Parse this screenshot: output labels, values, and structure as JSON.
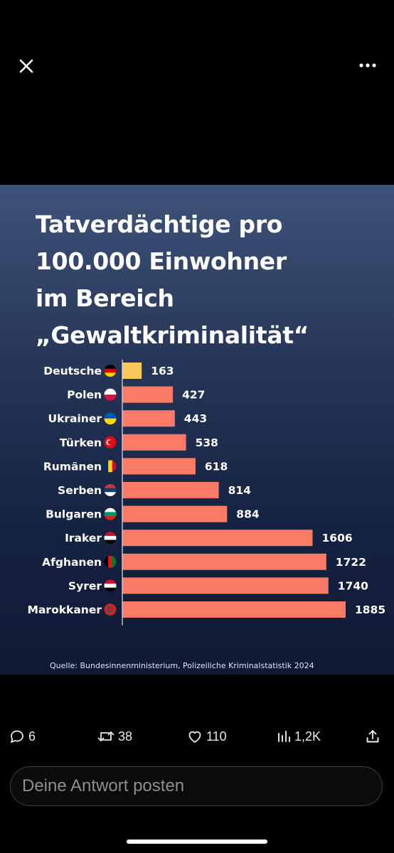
{
  "viewer": {
    "close_icon": "close-icon",
    "more_icon": "more-horizontal-icon"
  },
  "media": {
    "title_lines": [
      "Tatverdächtige pro",
      "100.000 Einwohner",
      "im Bereich",
      "„Gewaltkriminalität“"
    ],
    "source": "Quelle: Bundesinnenministerium, Polizeiliche Kriminalstatistik 2024",
    "colors": {
      "highlight": "#f9c85a",
      "bar": "#fb7a66",
      "axis": "#cfd6e6",
      "label": "#ffffff"
    }
  },
  "chart_data": {
    "type": "bar",
    "orientation": "horizontal",
    "title": "Tatverdächtige pro 100.000 Einwohner im Bereich „Gewaltkriminalität“",
    "categories": [
      "Deutsche",
      "Polen",
      "Ukrainer",
      "Türken",
      "Rumänen",
      "Serben",
      "Bulgaren",
      "Iraker",
      "Afghanen",
      "Syrer",
      "Marokkaner"
    ],
    "flags": [
      "germany-flag-icon",
      "poland-flag-icon",
      "ukraine-flag-icon",
      "turkey-flag-icon",
      "romania-flag-icon",
      "serbia-flag-icon",
      "bulgaria-flag-icon",
      "iraq-flag-icon",
      "afghanistan-flag-icon",
      "syria-flag-icon",
      "morocco-flag-icon"
    ],
    "values": [
      163,
      427,
      443,
      538,
      618,
      814,
      884,
      1606,
      1722,
      1740,
      1885
    ],
    "value_labels": [
      "163",
      "427",
      "443",
      "538",
      "618",
      "814",
      "884",
      "1606",
      "1722",
      "1740",
      "1885"
    ],
    "highlight_category": "Deutsche",
    "xlim": [
      0,
      1885
    ],
    "grid": false,
    "legend": "none"
  },
  "actions": {
    "replies": "6",
    "reposts": "38",
    "likes": "110",
    "views": "1,2K",
    "reply_icon": "speech-bubble-icon",
    "repost_icon": "repost-icon",
    "like_icon": "heart-icon",
    "views_icon": "bar-chart-icon",
    "share_icon": "share-icon"
  },
  "reply": {
    "placeholder": "Deine Antwort posten"
  }
}
